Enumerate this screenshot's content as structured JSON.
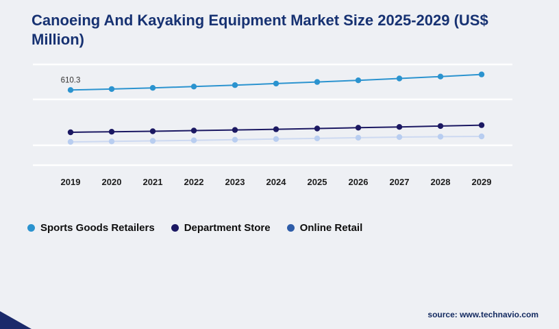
{
  "title": "Canoeing And Kayaking Equipment Market Size 2025-2029 (US$ Million)",
  "source": "source: www.technavio.com",
  "chart_data": {
    "type": "line",
    "x": [
      "2019",
      "2020",
      "2021",
      "2022",
      "2023",
      "2024",
      "2025",
      "2026",
      "2027",
      "2028",
      "2029"
    ],
    "series": [
      {
        "name": "Sports Goods Retailers",
        "color": "#2b93cf",
        "values": [
          610.3,
          618,
          627,
          637,
          648,
          660,
          672,
          685,
          699,
          714,
          730
        ]
      },
      {
        "name": "Department Store",
        "color": "#1b1862",
        "values": [
          285,
          289,
          293,
          298,
          303,
          308,
          314,
          320,
          326,
          333,
          340
        ]
      },
      {
        "name": "Online Retail",
        "color": "#2e5ca8",
        "line_color": "#cdd9f1",
        "marker_color": "#b8cdf0",
        "values": [
          211,
          215,
          219,
          223,
          228,
          233,
          238,
          243,
          248,
          251,
          253
        ]
      }
    ],
    "annotation": {
      "series": "Sports Goods Retailers",
      "x": "2019",
      "label": "610.3"
    },
    "ylim": [
      0,
      860
    ],
    "grid": "horizontal",
    "legend_position": "bottom"
  }
}
